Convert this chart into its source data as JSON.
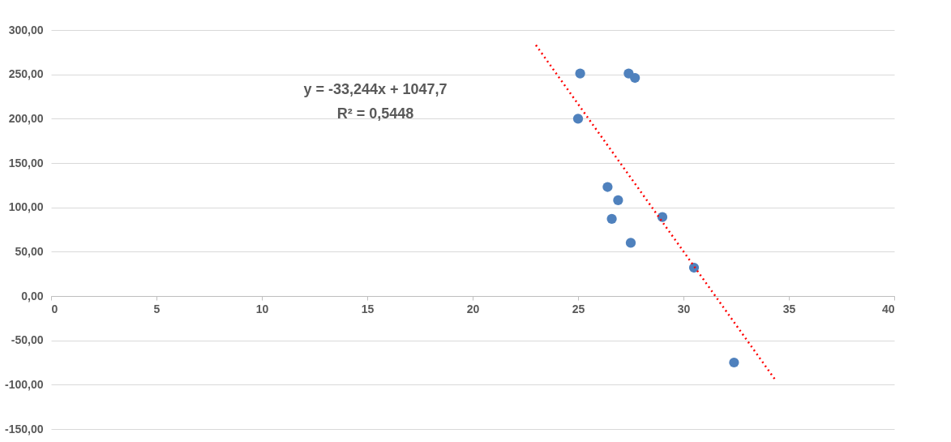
{
  "chart_data": {
    "type": "scatter",
    "xlim": [
      0,
      40
    ],
    "xticks": [
      0,
      5,
      10,
      15,
      20,
      25,
      30,
      35,
      40
    ],
    "ylim": [
      -150,
      300
    ],
    "yticks": [
      {
        "value": -150,
        "label": "-150,00"
      },
      {
        "value": -100,
        "label": "-100,00"
      },
      {
        "value": -50,
        "label": "-50,00"
      },
      {
        "value": 0,
        "label": "0,00"
      },
      {
        "value": 50,
        "label": "50,00"
      },
      {
        "value": 100,
        "label": "100,00"
      },
      {
        "value": 150,
        "label": "150,00"
      },
      {
        "value": 200,
        "label": "200,00"
      },
      {
        "value": 250,
        "label": "250,00"
      },
      {
        "value": 300,
        "label": "300,00"
      }
    ],
    "grid": "y",
    "series": [
      {
        "marker": "circle",
        "color": "#4f81bd",
        "x": [
          25.1,
          27.4,
          27.7,
          25.0,
          26.4,
          26.9,
          26.6,
          29.0,
          27.5,
          30.5,
          32.4
        ],
        "values": [
          251,
          251,
          246,
          200,
          123,
          108,
          87,
          89,
          60,
          32,
          -75
        ]
      },
      {
        "type": "line",
        "color": "#ff0000",
        "line_style": "dotted",
        "x": [
          23.0,
          34.4
        ],
        "values": [
          283,
          -96
        ]
      }
    ],
    "annotations": [
      "y = -33,244x + 1047,7",
      "R² = 0,5448"
    ]
  }
}
